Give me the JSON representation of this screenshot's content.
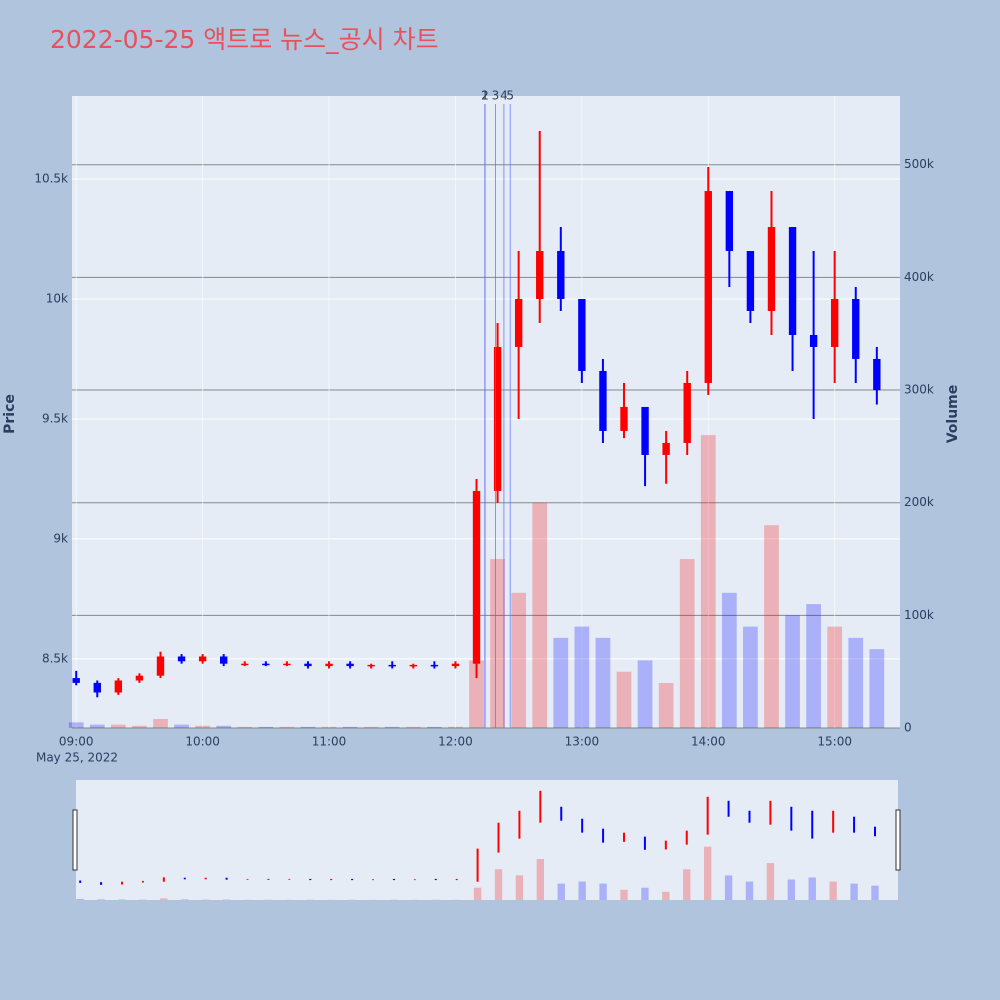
{
  "chart_data": {
    "type": "candlestick",
    "title": "2022-05-25 액트로 뉴스_공시 차트",
    "y_label": "Price",
    "y2_label": "Volume",
    "x_date_label": "May 25, 2022",
    "increasing_color": "#ff0000",
    "decreasing_color": "#0000ff",
    "x": [
      "09:00",
      "09:10",
      "09:20",
      "09:30",
      "09:40",
      "09:50",
      "10:00",
      "10:10",
      "10:20",
      "10:30",
      "10:40",
      "10:50",
      "11:00",
      "11:10",
      "11:20",
      "11:30",
      "11:40",
      "11:50",
      "12:00",
      "12:10",
      "12:20",
      "12:30",
      "12:40",
      "12:50",
      "13:00",
      "13:10",
      "13:20",
      "13:30",
      "13:40",
      "13:50",
      "14:00",
      "14:10",
      "14:20",
      "14:30",
      "14:40",
      "14:50",
      "15:00",
      "15:10",
      "15:20"
    ],
    "open": [
      8420,
      8400,
      8360,
      8410,
      8430,
      8510,
      8490,
      8510,
      8480,
      8480,
      8475,
      8480,
      8470,
      8480,
      8470,
      8475,
      8470,
      8475,
      8470,
      8480,
      9200,
      9800,
      10000,
      10200,
      10000,
      9700,
      9450,
      9550,
      9350,
      9400,
      9650,
      10450,
      10200,
      9950,
      10300,
      9850,
      9800,
      10000,
      9750
    ],
    "high": [
      8450,
      8410,
      8420,
      8440,
      8530,
      8520,
      8520,
      8520,
      8490,
      8490,
      8490,
      8490,
      8490,
      8490,
      8480,
      8490,
      8480,
      8490,
      8490,
      9250,
      9900,
      10200,
      10700,
      10300,
      10000,
      9750,
      9650,
      9550,
      9450,
      9700,
      10550,
      10450,
      10200,
      10450,
      10300,
      10200,
      10200,
      10050,
      9800
    ],
    "low": [
      8390,
      8340,
      8350,
      8400,
      8420,
      8480,
      8480,
      8470,
      8470,
      8470,
      8470,
      8460,
      8460,
      8460,
      8460,
      8460,
      8460,
      8460,
      8460,
      8420,
      9150,
      9500,
      9900,
      9950,
      9650,
      9400,
      9420,
      9220,
      9230,
      9350,
      9600,
      10050,
      9900,
      9850,
      9700,
      9500,
      9650,
      9650,
      9560
    ],
    "close": [
      8400,
      8360,
      8410,
      8430,
      8510,
      8490,
      8510,
      8480,
      8480,
      8475,
      8480,
      8470,
      8480,
      8470,
      8475,
      8470,
      8475,
      8470,
      8480,
      9200,
      9800,
      10000,
      10200,
      10000,
      9700,
      9450,
      9550,
      9350,
      9400,
      9650,
      10450,
      10200,
      9950,
      10300,
      9850,
      9800,
      10000,
      9750,
      9620
    ],
    "volume": [
      5000,
      3000,
      3000,
      2000,
      8000,
      3000,
      2000,
      2000,
      1000,
      1000,
      1000,
      1000,
      1000,
      1000,
      1000,
      1000,
      1000,
      1000,
      1000,
      60000,
      150000,
      120000,
      200000,
      80000,
      90000,
      80000,
      50000,
      60000,
      40000,
      150000,
      260000,
      120000,
      90000,
      180000,
      100000,
      110000,
      90000,
      80000,
      70000
    ],
    "xlim": [
      "08:58",
      "15:31"
    ],
    "xticks": [
      "09:00",
      "10:00",
      "11:00",
      "12:00",
      "13:00",
      "14:00",
      "15:00"
    ],
    "ylim": [
      8212,
      10846
    ],
    "yticks": [
      {
        "value": 8500,
        "label": "8.5k"
      },
      {
        "value": 9000,
        "label": "9k"
      },
      {
        "value": 9500,
        "label": "9.5k"
      },
      {
        "value": 10000,
        "label": "10k"
      },
      {
        "value": 10500,
        "label": "10.5k"
      }
    ],
    "y2lim": [
      0,
      561000
    ],
    "y2ticks": [
      0,
      {
        "value": 100000,
        "label": "100k"
      },
      {
        "value": 200000,
        "label": "200k"
      },
      {
        "value": 300000,
        "label": "300k"
      },
      {
        "value": 400000,
        "label": "400k"
      },
      {
        "value": 500000,
        "label": "500k"
      }
    ],
    "annotations": [
      {
        "x": "12:14",
        "label": "1"
      },
      {
        "x": "12:14",
        "label": "2"
      },
      {
        "x": "12:19",
        "label": "3"
      },
      {
        "x": "12:23",
        "label": "4"
      },
      {
        "x": "12:26",
        "label": "5"
      }
    ],
    "grid": true,
    "range_slider": true
  }
}
